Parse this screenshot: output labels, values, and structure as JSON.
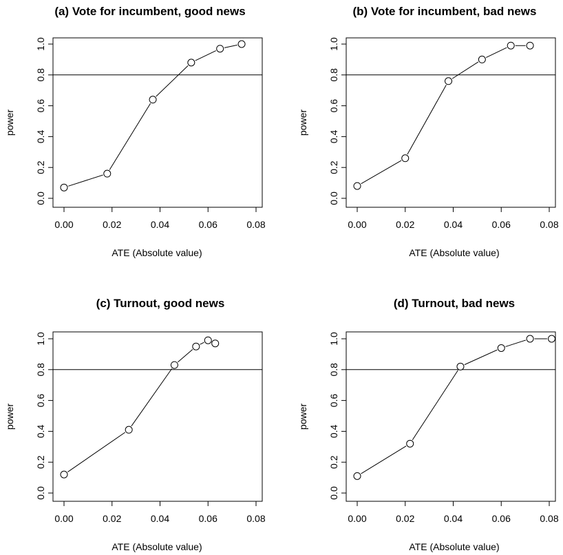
{
  "chart_data": [
    {
      "type": "line",
      "title": "(a) Vote for incumbent, good news",
      "xlabel": "ATE (Absolute value)",
      "ylabel": "power",
      "xlim": [
        0,
        0.08
      ],
      "ylim": [
        0,
        1
      ],
      "xticks": [
        "0.00",
        "0.02",
        "0.04",
        "0.06",
        "0.08"
      ],
      "yticks": [
        "0.0",
        "0.2",
        "0.4",
        "0.6",
        "0.8",
        "1.0"
      ],
      "hline": 0.8,
      "x": [
        0.0,
        0.018,
        0.037,
        0.053,
        0.065,
        0.074
      ],
      "y": [
        0.07,
        0.16,
        0.64,
        0.88,
        0.97,
        1.0
      ]
    },
    {
      "type": "line",
      "title": "(b) Vote for incumbent, bad news",
      "xlabel": "ATE (Absolute value)",
      "ylabel": "power",
      "xlim": [
        0,
        0.08
      ],
      "ylim": [
        0,
        1
      ],
      "xticks": [
        "0.00",
        "0.02",
        "0.04",
        "0.06",
        "0.08"
      ],
      "yticks": [
        "0.0",
        "0.2",
        "0.4",
        "0.6",
        "0.8",
        "1.0"
      ],
      "hline": 0.8,
      "x": [
        0.0,
        0.02,
        0.038,
        0.052,
        0.064,
        0.072
      ],
      "y": [
        0.08,
        0.26,
        0.76,
        0.9,
        0.99,
        0.99
      ]
    },
    {
      "type": "line",
      "title": "(c) Turnout, good news",
      "xlabel": "ATE (Absolute value)",
      "ylabel": "power",
      "xlim": [
        0,
        0.08
      ],
      "ylim": [
        0,
        1
      ],
      "xticks": [
        "0.00",
        "0.02",
        "0.04",
        "0.06",
        "0.08"
      ],
      "yticks": [
        "0.0",
        "0.2",
        "0.4",
        "0.6",
        "0.8",
        "1.0"
      ],
      "hline": 0.8,
      "x": [
        0.0,
        0.027,
        0.046,
        0.055,
        0.06,
        0.063
      ],
      "y": [
        0.12,
        0.41,
        0.83,
        0.95,
        0.99,
        0.97
      ]
    },
    {
      "type": "line",
      "title": "(d) Turnout, bad news",
      "xlabel": "ATE (Absolute value)",
      "ylabel": "power",
      "xlim": [
        0,
        0.08
      ],
      "ylim": [
        0,
        1
      ],
      "xticks": [
        "0.00",
        "0.02",
        "0.04",
        "0.06",
        "0.08"
      ],
      "yticks": [
        "0.0",
        "0.2",
        "0.4",
        "0.6",
        "0.8",
        "1.0"
      ],
      "hline": 0.8,
      "x": [
        0.0,
        0.022,
        0.043,
        0.06,
        0.072,
        0.081
      ],
      "y": [
        0.11,
        0.32,
        0.82,
        0.94,
        1.0,
        1.0
      ]
    }
  ]
}
